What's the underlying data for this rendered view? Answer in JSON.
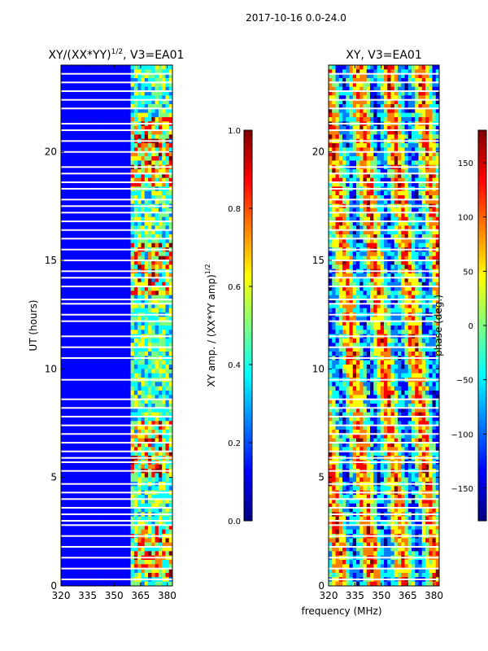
{
  "figure_title": "2017-10-16 0.0-24.0",
  "shared_xlabel": "frequency (MHz)",
  "colors": {
    "background": "#ffffff",
    "axis": "#000000",
    "gap": "#ffffff",
    "jet": [
      "#00007f",
      "#0000ff",
      "#007fff",
      "#00ffff",
      "#7fff7f",
      "#ffff00",
      "#ff7f00",
      "#ff0000",
      "#7f0000"
    ]
  },
  "chart_data": [
    {
      "type": "heatmap",
      "name": "amplitude-ratio",
      "title_main": "XY/(XX*YY)",
      "title_sup": "1/2",
      "title_suffix": ", V3=EA01",
      "ylabel": "UT (hours)",
      "xlim": [
        320,
        383
      ],
      "ylim": [
        0,
        24
      ],
      "xticks": [
        320,
        335,
        350,
        365,
        380
      ],
      "yticks": [
        0,
        5,
        10,
        15,
        20
      ],
      "colorbar": {
        "label_main": "XY amp. / (XX*YY amp)",
        "label_sup": "1/2",
        "range": [
          0.0,
          1.0
        ],
        "ticks": [
          0.0,
          0.2,
          0.4,
          0.6,
          0.8,
          1.0
        ],
        "tick_labels": [
          "0.0",
          "0.2",
          "0.4",
          "0.6",
          "0.8",
          "1.0"
        ]
      },
      "description_values": {
        "low_band_level": 0.1,
        "high_band_start_mhz": 360,
        "active_hours": [
          [
            0.5,
            2.8
          ],
          [
            5.0,
            7.5
          ],
          [
            13.5,
            15.8
          ],
          [
            18.5,
            21.5
          ]
        ]
      }
    },
    {
      "type": "heatmap",
      "name": "phase",
      "title_main": "XY, V3=EA01",
      "ylabel": "",
      "xlim": [
        320,
        383
      ],
      "ylim": [
        0,
        24
      ],
      "xticks": [
        320,
        335,
        350,
        365,
        380
      ],
      "yticks": [
        0,
        5,
        10,
        15,
        20
      ],
      "colorbar": {
        "label_main": "phase (deg.)",
        "range": [
          -180,
          180
        ],
        "ticks": [
          -150,
          -100,
          -50,
          0,
          50,
          100,
          150
        ],
        "tick_labels": [
          "−150",
          "−100",
          "−50",
          "0",
          "50",
          "100",
          "150"
        ]
      }
    }
  ],
  "gap_hours": [
    0.3,
    0.8,
    1.3,
    1.8,
    2.3,
    2.8,
    3.0,
    3.3,
    3.6,
    4.0,
    4.3,
    4.7,
    5.3,
    5.7,
    5.9,
    6.2,
    6.6,
    7.0,
    7.4,
    7.8,
    8.2,
    8.6,
    9.5,
    10.5,
    11.0,
    11.5,
    12.2,
    12.5,
    13.0,
    13.2,
    13.8,
    14.2,
    14.5,
    15.0,
    15.5,
    16.0,
    16.4,
    16.8,
    17.2,
    17.5,
    17.8,
    18.3,
    18.6,
    19.0,
    19.3,
    20.0,
    20.5,
    21.0,
    21.3,
    22.0,
    22.4,
    22.8,
    23.2,
    23.6
  ]
}
